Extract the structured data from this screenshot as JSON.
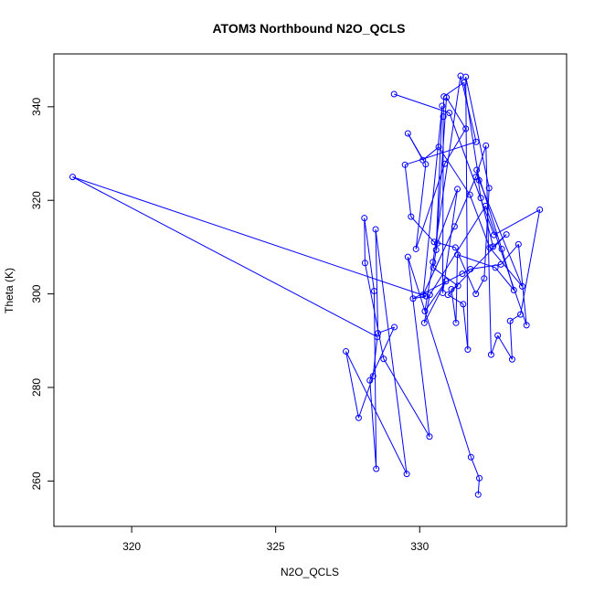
{
  "chart_data": {
    "type": "line",
    "title": "ATOM3 Northbound N2O_QCLS",
    "xlabel": "N2O_QCLS",
    "ylabel": "Theta (K)",
    "xlim": [
      317.3,
      335.1
    ],
    "ylim": [
      250.3,
      351.3
    ],
    "xticks": [
      320,
      325,
      330
    ],
    "yticks": [
      260,
      280,
      300,
      320,
      340
    ],
    "grid": false,
    "legend": "none",
    "series": [
      {
        "color": "#0000ff",
        "marker": "open-circle",
        "points": [
          [
            329.11,
            342.7
          ],
          [
            331.03,
            338.7
          ],
          [
            332.58,
            312.6
          ],
          [
            334.17,
            318.0
          ],
          [
            333.5,
            295.6
          ],
          [
            333.14,
            294.2
          ],
          [
            333.21,
            286.0
          ],
          [
            332.71,
            291.1
          ],
          [
            332.48,
            287.0
          ],
          [
            332.3,
            331.7
          ],
          [
            331.95,
            325.0
          ],
          [
            331.21,
            314.4
          ],
          [
            330.12,
            299.8
          ],
          [
            330.78,
            340.2
          ],
          [
            330.57,
            309.4
          ],
          [
            330.93,
            342.0
          ],
          [
            331.6,
            335.3
          ],
          [
            330.87,
            327.8
          ],
          [
            329.87,
            309.6
          ],
          [
            330.21,
            327.7
          ],
          [
            329.59,
            334.3
          ],
          [
            330.11,
            328.6
          ],
          [
            330.66,
            331.4
          ],
          [
            331.74,
            321.2
          ],
          [
            332.43,
            309.9
          ],
          [
            333.56,
            301.6
          ],
          [
            332.06,
            324.3
          ],
          [
            331.54,
            345.2
          ],
          [
            330.84,
            342.2
          ],
          [
            330.82,
            337.9
          ],
          [
            330.8,
            300.2
          ],
          [
            331.31,
            322.4
          ],
          [
            330.61,
            310.8
          ],
          [
            330.47,
            305.6
          ],
          [
            331.33,
            301.7
          ],
          [
            331.1,
            301.0
          ],
          [
            331.26,
            293.8
          ],
          [
            331.31,
            308.4
          ],
          [
            332.63,
            305.6
          ],
          [
            333.27,
            300.8
          ],
          [
            332.85,
            309.6
          ],
          [
            331.98,
            326.5
          ],
          [
            332.12,
            320.5
          ],
          [
            332.55,
            310.1
          ],
          [
            333.01,
            312.7
          ],
          [
            330.98,
            299.8
          ],
          [
            331.51,
            297.8
          ],
          [
            331.67,
            288.1
          ],
          [
            331.6,
            346.4
          ],
          [
            332.41,
            322.6
          ],
          [
            332.24,
            303.3
          ],
          [
            331.95,
            300.0
          ],
          [
            331.24,
            309.9
          ],
          [
            330.5,
            311.1
          ],
          [
            329.7,
            316.5
          ],
          [
            329.49,
            327.6
          ],
          [
            331.96,
            332.5
          ],
          [
            331.42,
            346.6
          ],
          [
            330.46,
            306.8
          ],
          [
            330.18,
            296.3
          ],
          [
            330.91,
            302.7
          ],
          [
            330.16,
            293.8
          ],
          [
            330.35,
            299.8
          ],
          [
            332.29,
            318.8
          ],
          [
            333.71,
            293.3
          ],
          [
            333.43,
            310.6
          ],
          [
            332.82,
            306.3
          ],
          [
            331.76,
            305.3
          ],
          [
            331.48,
            304.3
          ],
          [
            329.77,
            299.0
          ],
          [
            330.22,
            299.5
          ],
          [
            317.95,
            325.0
          ],
          [
            328.53,
            290.8
          ],
          [
            328.38,
            282.4
          ],
          [
            327.88,
            273.5
          ],
          [
            327.44,
            287.7
          ],
          [
            329.55,
            261.5
          ],
          [
            328.47,
            313.8
          ],
          [
            328.55,
            291.6
          ],
          [
            329.12,
            292.9
          ],
          [
            328.27,
            281.5
          ],
          [
            328.49,
            262.6
          ],
          [
            328.42,
            300.6
          ],
          [
            328.08,
            316.2
          ],
          [
            328.1,
            306.6
          ],
          [
            328.75,
            286.1
          ],
          [
            330.34,
            269.5
          ],
          [
            329.59,
            307.9
          ],
          [
            331.78,
            265.1
          ],
          [
            332.07,
            260.6
          ],
          [
            332.03,
            257.1
          ]
        ]
      }
    ]
  }
}
